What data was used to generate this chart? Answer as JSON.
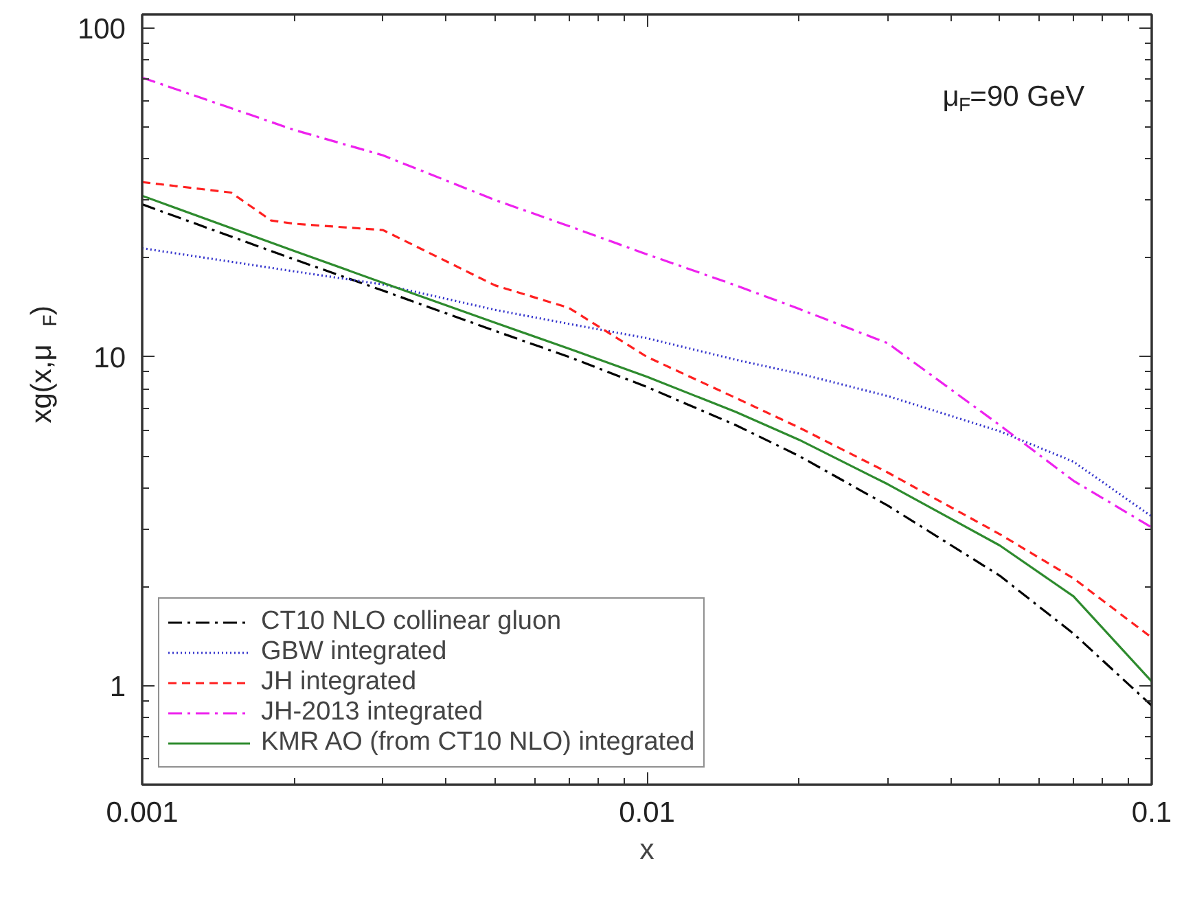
{
  "chart_data": {
    "type": "line",
    "xlabel": "x",
    "ylabel": "xg(x,μ$_{F}$)",
    "log": "xy",
    "grid": false,
    "legend": "bottom left",
    "marker": "none",
    "xlim": [
      0.001,
      0.1
    ],
    "xticks": [
      0.001,
      0.01,
      0.1
    ],
    "ylim": [
      0.5,
      110
    ],
    "yticks": [
      1,
      10,
      100
    ],
    "x": [
      0.001,
      0.002,
      0.003,
      0.005,
      0.007,
      0.01,
      0.015,
      0.02,
      0.03,
      0.05,
      0.07,
      0.1
    ],
    "annotations": [
      "μ$_{F}$=90 GeV"
    ],
    "series": [
      {
        "name": "CT10 NLO collinear gluon",
        "color": "#000000",
        "line_style": "dashdot",
        "values": [
          29.1,
          19.8,
          15.9,
          12.0,
          10.0,
          8.1,
          6.2,
          5.0,
          3.53,
          2.16,
          1.44,
          0.87
        ]
      },
      {
        "name": "GBW integrated",
        "color": "#3333cc",
        "line_style": "dotted",
        "values": [
          21.4,
          18.2,
          16.6,
          13.9,
          12.6,
          11.4,
          9.8,
          8.9,
          7.6,
          5.94,
          4.8,
          3.27
        ]
      },
      {
        "name": "JH integrated",
        "color": "#ff2020",
        "line_style": "dashed",
        "x": [
          0.001,
          0.0015,
          0.0018,
          0.002,
          0.003,
          0.005,
          0.007,
          0.01,
          0.015,
          0.02,
          0.03,
          0.05,
          0.07,
          0.1
        ],
        "values": [
          34,
          31.6,
          26,
          25.4,
          24.3,
          16.5,
          14.1,
          10.0,
          7.5,
          6.1,
          4.45,
          2.89,
          2.12,
          1.4
        ]
      },
      {
        "name": "JH-2013 integrated",
        "color": "#ee22ee",
        "line_style": "dashdot",
        "values": [
          70.7,
          49,
          41,
          30,
          25,
          20.5,
          16.5,
          14,
          11,
          6.2,
          4.2,
          3.03
        ]
      },
      {
        "name": "KMR AO (from CT10 NLO) integrated",
        "color": "#2e8b2e",
        "line_style": "solid",
        "values": [
          30.9,
          21.0,
          16.8,
          12.7,
          10.6,
          8.7,
          6.8,
          5.6,
          4.1,
          2.67,
          1.87,
          1.03
        ]
      }
    ]
  }
}
